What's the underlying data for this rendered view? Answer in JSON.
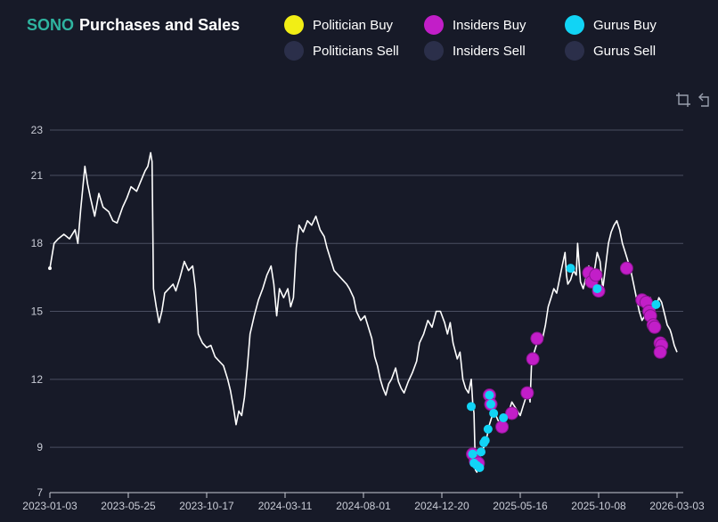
{
  "title": {
    "ticker": "SONO",
    "text": "Purchases and Sales"
  },
  "legend": [
    {
      "label": "Politician Buy",
      "color": "#f2ee15"
    },
    {
      "label": "Insiders Buy",
      "color": "#c21ec8"
    },
    {
      "label": "Gurus Buy",
      "color": "#11d4f5"
    },
    {
      "label": "Politicians Sell",
      "color": "#2b2f4a"
    },
    {
      "label": "Insiders Sell",
      "color": "#2b2f4a"
    },
    {
      "label": "Gurus Sell",
      "color": "#2b2f4a"
    }
  ],
  "toolbar": {
    "zoom_icon": "crop-zoom-icon",
    "reset_icon": "reset-zoom-icon"
  },
  "chart_data": {
    "type": "line",
    "title": "SONO Purchases and Sales",
    "xlabel": "",
    "ylabel": "",
    "ylim": [
      7,
      23
    ],
    "yticks": [
      7,
      9,
      12,
      15,
      18,
      21,
      23
    ],
    "xticks": [
      "2023-01-03",
      "2023-05-25",
      "2023-10-17",
      "2024-03-11",
      "2024-08-01",
      "2024-12-20",
      "2025-05-16",
      "2025-10-08",
      "2026-03-03"
    ],
    "grid": true,
    "price_series": {
      "name": "SONO price",
      "color": "#ffffff",
      "points": [
        [
          0,
          16.9
        ],
        [
          3,
          18.0
        ],
        [
          6,
          18.2
        ],
        [
          10,
          18.4
        ],
        [
          14,
          18.2
        ],
        [
          18,
          18.6
        ],
        [
          20,
          18.0
        ],
        [
          22,
          19.5
        ],
        [
          25,
          21.4
        ],
        [
          27,
          20.6
        ],
        [
          29,
          20.0
        ],
        [
          32,
          19.2
        ],
        [
          35,
          20.2
        ],
        [
          38,
          19.6
        ],
        [
          42,
          19.4
        ],
        [
          45,
          19.0
        ],
        [
          48,
          18.9
        ],
        [
          52,
          19.6
        ],
        [
          55,
          20.0
        ],
        [
          58,
          20.5
        ],
        [
          62,
          20.3
        ],
        [
          66,
          20.9
        ],
        [
          68,
          21.2
        ],
        [
          70,
          21.4
        ],
        [
          72,
          22.0
        ],
        [
          73,
          21.6
        ],
        [
          74,
          16.0
        ],
        [
          76,
          15.2
        ],
        [
          78,
          14.5
        ],
        [
          80,
          15.0
        ],
        [
          82,
          15.8
        ],
        [
          85,
          16.0
        ],
        [
          88,
          16.2
        ],
        [
          90,
          15.9
        ],
        [
          93,
          16.5
        ],
        [
          96,
          17.2
        ],
        [
          99,
          16.8
        ],
        [
          102,
          17.0
        ],
        [
          104,
          16.0
        ],
        [
          106,
          14.0
        ],
        [
          109,
          13.6
        ],
        [
          112,
          13.4
        ],
        [
          115,
          13.5
        ],
        [
          118,
          13.0
        ],
        [
          121,
          12.8
        ],
        [
          124,
          12.6
        ],
        [
          127,
          12.0
        ],
        [
          129,
          11.5
        ],
        [
          131,
          10.8
        ],
        [
          133,
          10.0
        ],
        [
          135,
          10.6
        ],
        [
          137,
          10.4
        ],
        [
          139,
          11.2
        ],
        [
          141,
          12.5
        ],
        [
          143,
          14.0
        ],
        [
          146,
          14.8
        ],
        [
          149,
          15.5
        ],
        [
          152,
          16.0
        ],
        [
          155,
          16.6
        ],
        [
          158,
          17.0
        ],
        [
          160,
          16.2
        ],
        [
          162,
          14.8
        ],
        [
          164,
          16.0
        ],
        [
          167,
          15.6
        ],
        [
          170,
          16.0
        ],
        [
          172,
          15.2
        ],
        [
          174,
          15.6
        ],
        [
          176,
          17.8
        ],
        [
          178,
          18.8
        ],
        [
          181,
          18.5
        ],
        [
          184,
          19.0
        ],
        [
          187,
          18.8
        ],
        [
          190,
          19.2
        ],
        [
          193,
          18.6
        ],
        [
          196,
          18.3
        ],
        [
          198,
          17.8
        ],
        [
          200,
          17.4
        ],
        [
          203,
          16.8
        ],
        [
          206,
          16.6
        ],
        [
          209,
          16.4
        ],
        [
          212,
          16.2
        ],
        [
          214,
          16.0
        ],
        [
          217,
          15.6
        ],
        [
          219,
          15.0
        ],
        [
          222,
          14.6
        ],
        [
          225,
          14.8
        ],
        [
          228,
          14.2
        ],
        [
          230,
          13.8
        ],
        [
          232,
          13.0
        ],
        [
          234,
          12.6
        ],
        [
          236,
          12.0
        ],
        [
          238,
          11.6
        ],
        [
          240,
          11.3
        ],
        [
          242,
          11.8
        ],
        [
          244,
          12.0
        ],
        [
          247,
          12.5
        ],
        [
          249,
          11.9
        ],
        [
          251,
          11.6
        ],
        [
          253,
          11.4
        ],
        [
          256,
          11.9
        ],
        [
          259,
          12.3
        ],
        [
          262,
          12.8
        ],
        [
          264,
          13.6
        ],
        [
          267,
          14.0
        ],
        [
          270,
          14.6
        ],
        [
          273,
          14.3
        ],
        [
          276,
          15.0
        ],
        [
          279,
          15.0
        ],
        [
          282,
          14.5
        ],
        [
          284,
          14.0
        ],
        [
          286,
          14.5
        ],
        [
          288,
          13.6
        ],
        [
          291,
          12.9
        ],
        [
          293,
          13.2
        ],
        [
          295,
          12.0
        ],
        [
          297,
          11.6
        ],
        [
          299,
          11.4
        ],
        [
          301,
          12.0
        ],
        [
          302,
          11.0
        ],
        [
          303,
          10.5
        ],
        [
          304,
          8.0
        ],
        [
          305,
          7.9
        ],
        [
          306,
          8.5
        ],
        [
          308,
          8.7
        ],
        [
          310,
          9.0
        ],
        [
          312,
          9.4
        ],
        [
          314,
          10.0
        ],
        [
          316,
          10.4
        ],
        [
          318,
          10.5
        ],
        [
          320,
          10.2
        ],
        [
          322,
          10.0
        ],
        [
          324,
          10.3
        ],
        [
          326,
          10.4
        ],
        [
          328,
          10.6
        ],
        [
          330,
          11.0
        ],
        [
          332,
          10.8
        ],
        [
          334,
          10.6
        ],
        [
          336,
          10.4
        ],
        [
          338,
          10.8
        ],
        [
          340,
          11.2
        ],
        [
          342,
          11.4
        ],
        [
          343,
          11.0
        ],
        [
          344,
          12.6
        ],
        [
          346,
          13.2
        ],
        [
          348,
          13.6
        ],
        [
          350,
          14.0
        ],
        [
          352,
          13.8
        ],
        [
          354,
          14.4
        ],
        [
          356,
          15.2
        ],
        [
          358,
          15.6
        ],
        [
          360,
          16.0
        ],
        [
          362,
          15.8
        ],
        [
          364,
          16.4
        ],
        [
          366,
          17.0
        ],
        [
          368,
          17.6
        ],
        [
          369,
          16.6
        ],
        [
          370,
          16.2
        ],
        [
          372,
          16.4
        ],
        [
          374,
          16.8
        ],
        [
          376,
          16.6
        ],
        [
          377,
          18.0
        ],
        [
          379,
          16.3
        ],
        [
          381,
          16.0
        ],
        [
          383,
          16.5
        ],
        [
          385,
          17.0
        ],
        [
          387,
          16.4
        ],
        [
          389,
          16.8
        ],
        [
          391,
          17.6
        ],
        [
          393,
          17.2
        ],
        [
          395,
          16.0
        ],
        [
          397,
          17.0
        ],
        [
          399,
          18.0
        ],
        [
          401,
          18.5
        ],
        [
          403,
          18.8
        ],
        [
          405,
          19.0
        ],
        [
          407,
          18.6
        ],
        [
          409,
          18.0
        ],
        [
          411,
          17.6
        ],
        [
          413,
          17.2
        ],
        [
          415,
          16.8
        ],
        [
          417,
          16.2
        ],
        [
          419,
          15.6
        ],
        [
          421,
          15.0
        ],
        [
          423,
          14.6
        ],
        [
          425,
          14.8
        ],
        [
          427,
          15.2
        ],
        [
          429,
          15.6
        ],
        [
          431,
          15.0
        ],
        [
          433,
          15.2
        ],
        [
          435,
          15.6
        ],
        [
          437,
          15.4
        ],
        [
          439,
          14.9
        ],
        [
          441,
          14.4
        ],
        [
          443,
          14.2
        ],
        [
          444,
          14.0
        ],
        [
          446,
          13.5
        ],
        [
          448,
          13.2
        ]
      ]
    },
    "insiders_buy": [
      [
        302,
        8.7
      ],
      [
        304,
        8.4
      ],
      [
        306,
        8.3
      ],
      [
        314,
        11.3
      ],
      [
        315,
        10.9
      ],
      [
        323,
        9.9
      ],
      [
        330,
        10.5
      ],
      [
        341,
        11.4
      ],
      [
        345,
        12.9
      ],
      [
        348,
        13.8
      ],
      [
        385,
        16.7
      ],
      [
        387,
        16.3
      ],
      [
        390,
        16.6
      ],
      [
        392,
        15.9
      ],
      [
        412,
        16.9
      ],
      [
        423,
        15.5
      ],
      [
        426,
        15.4
      ],
      [
        428,
        15.0
      ],
      [
        429,
        14.8
      ],
      [
        431,
        14.4
      ],
      [
        432,
        14.3
      ],
      [
        436,
        13.6
      ],
      [
        437,
        13.5
      ],
      [
        436,
        13.2
      ]
    ],
    "gurus_buy": [
      [
        301,
        10.8
      ],
      [
        302,
        8.7
      ],
      [
        303,
        8.3
      ],
      [
        305,
        8.2
      ],
      [
        307,
        8.1
      ],
      [
        308,
        8.8
      ],
      [
        310,
        9.2
      ],
      [
        311,
        9.3
      ],
      [
        313,
        9.8
      ],
      [
        314,
        11.3
      ],
      [
        315,
        10.9
      ],
      [
        317,
        10.5
      ],
      [
        324,
        10.3
      ],
      [
        372,
        16.9
      ],
      [
        391,
        16.0
      ],
      [
        433,
        15.3
      ]
    ]
  }
}
